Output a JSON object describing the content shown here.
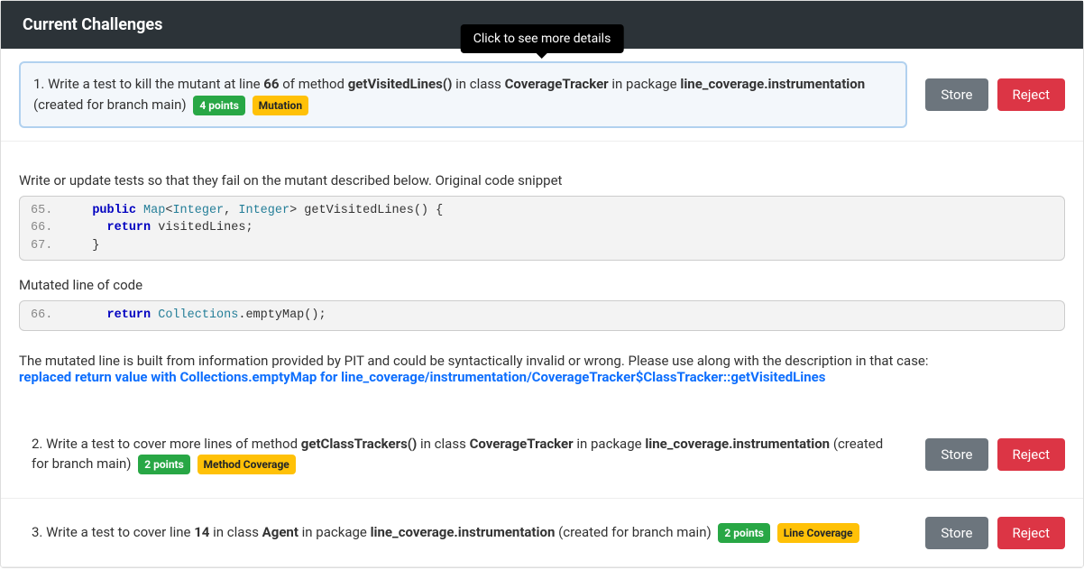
{
  "header": {
    "title": "Current Challenges"
  },
  "tooltip": {
    "text": "Click to see more details"
  },
  "buttons": {
    "store": "Store",
    "reject": "Reject"
  },
  "colors": {
    "header_bg": "#2c3338",
    "tooltip_bg": "#000000",
    "btn_secondary": "#6c757d",
    "btn_danger": "#dc3545",
    "badge_points": "#28a745",
    "badge_type": "#ffc107",
    "selected_border": "#b1d1ef",
    "selected_bg": "#f3f7fb",
    "link": "#0d6efd",
    "code_bg": "#f3f3f3"
  },
  "challenges": [
    {
      "index": "1.",
      "pre": " Write a test to kill the mutant at line ",
      "line": "66",
      "mid1": " of method ",
      "method": "getVisitedLines()",
      "mid2": " in class ",
      "class": "CoverageTracker",
      "mid3": " in package ",
      "package": "line_coverage.instrumentation",
      "branch": " (created for branch main) ",
      "points": "4 points",
      "type": "Mutation",
      "selected": true
    },
    {
      "index": "2.",
      "pre": " Write a test to cover more lines of method ",
      "method": "getClassTrackers()",
      "mid2": " in class ",
      "class": "CoverageTracker",
      "mid3": " in package ",
      "package": "line_coverage.instrumentation",
      "branch": " (created for branch main) ",
      "points": "2 points",
      "type": "Method Coverage",
      "selected": false
    },
    {
      "index": "3.",
      "pre": " Write a test to cover line ",
      "line": "14",
      "mid2": " in class ",
      "class": "Agent",
      "mid3": " in package ",
      "package": "line_coverage.instrumentation",
      "branch": " (created for branch main) ",
      "points": "2 points",
      "type": "Line Coverage",
      "selected": false
    }
  ],
  "detail": {
    "intro": "Write or update tests so that they fail on the mutant described below. Original code snippet",
    "original": [
      {
        "ln": "65.",
        "html": "   <span class='kw'>public</span> <span class='type'>Map</span>&lt;<span class='type'>Integer</span>, <span class='type'>Integer</span>&gt; getVisitedLines() {"
      },
      {
        "ln": "66.",
        "html": "     <span class='kw'>return</span> visitedLines;"
      },
      {
        "ln": "67.",
        "html": "   }"
      }
    ],
    "mutated_label": "Mutated line of code",
    "mutated": [
      {
        "ln": "66.",
        "html": "     <span class='kw'>return</span> <span class='type'>Collections</span>.emptyMap();"
      }
    ],
    "note": "The mutated line is built from information provided by PIT and could be syntactically invalid or wrong. Please use along with the description in that case:",
    "pit_desc": "replaced return value with Collections.emptyMap for line_coverage/instrumentation/CoverageTracker$ClassTracker::getVisitedLines"
  }
}
